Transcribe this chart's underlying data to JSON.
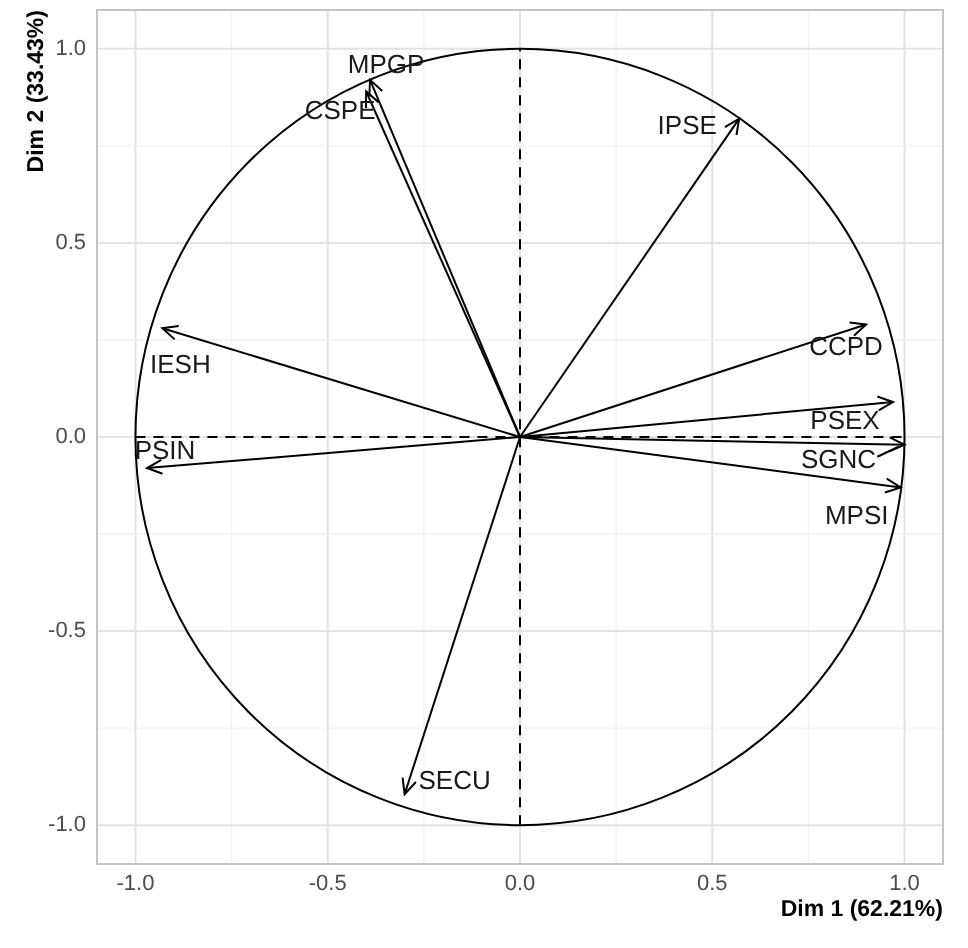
{
  "chart_data": {
    "type": "line",
    "xlabel": "Dim 1 (62.21%)",
    "ylabel": "Dim 2 (33.43%)",
    "xlim": [
      -1.1,
      1.1
    ],
    "ylim": [
      -1.1,
      1.1
    ],
    "xticks": [
      {
        "value": -1,
        "label": "-1.0"
      },
      {
        "value": -0.75,
        "label": null
      },
      {
        "value": -0.5,
        "label": "-0.5"
      },
      {
        "value": -0.25,
        "label": null
      },
      {
        "value": 0,
        "label": "0.0"
      },
      {
        "value": 0.25,
        "label": null
      },
      {
        "value": 0.5,
        "label": "0.5"
      },
      {
        "value": 0.75,
        "label": null
      },
      {
        "value": 1,
        "label": "1.0"
      }
    ],
    "yticks": [
      {
        "value": -1,
        "label": "-1.0"
      },
      {
        "value": -0.75,
        "label": null
      },
      {
        "value": -0.5,
        "label": "-0.5"
      },
      {
        "value": -0.25,
        "label": null
      },
      {
        "value": 0,
        "label": "0.0"
      },
      {
        "value": 0.25,
        "label": null
      },
      {
        "value": 0.5,
        "label": "0.5"
      },
      {
        "value": 0.75,
        "label": null
      },
      {
        "value": 1,
        "label": "1.0"
      }
    ],
    "grid": true,
    "series": [
      {
        "color": "#000000",
        "line_style": "dashed",
        "x": [
          -1,
          1
        ],
        "values": [
          0,
          0
        ]
      },
      {
        "color": "#000000",
        "line_style": "dashed",
        "x": [
          0,
          0
        ],
        "values": [
          -1,
          1
        ]
      },
      {
        "name": "MPGP",
        "color": "#000000",
        "x": [
          0,
          -0.39
        ],
        "values": [
          0,
          0.92
        ]
      },
      {
        "name": "CSPE",
        "color": "#000000",
        "x": [
          0,
          -0.4
        ],
        "values": [
          0,
          0.89
        ]
      },
      {
        "name": "IPSE",
        "color": "#000000",
        "x": [
          0,
          0.57
        ],
        "values": [
          0,
          0.82
        ]
      },
      {
        "name": "CCPD",
        "color": "#000000",
        "x": [
          0,
          0.9
        ],
        "values": [
          0,
          0.29
        ]
      },
      {
        "name": "PSEX",
        "color": "#000000",
        "x": [
          0,
          0.97
        ],
        "values": [
          0,
          0.09
        ]
      },
      {
        "name": "SGNC",
        "color": "#000000",
        "x": [
          0,
          1
        ],
        "values": [
          0,
          -0.02
        ]
      },
      {
        "name": "MPSI",
        "color": "#000000",
        "x": [
          0,
          0.99
        ],
        "values": [
          0,
          -0.13
        ]
      },
      {
        "name": "SECU",
        "color": "#000000",
        "x": [
          0,
          -0.3
        ],
        "values": [
          0,
          -0.92
        ]
      },
      {
        "name": "PSIN",
        "color": "#000000",
        "x": [
          0,
          -0.97
        ],
        "values": [
          0,
          -0.08
        ]
      },
      {
        "name": "IESH",
        "color": "#000000",
        "x": [
          0,
          -0.93
        ],
        "values": [
          0,
          0.28
        ]
      }
    ]
  }
}
